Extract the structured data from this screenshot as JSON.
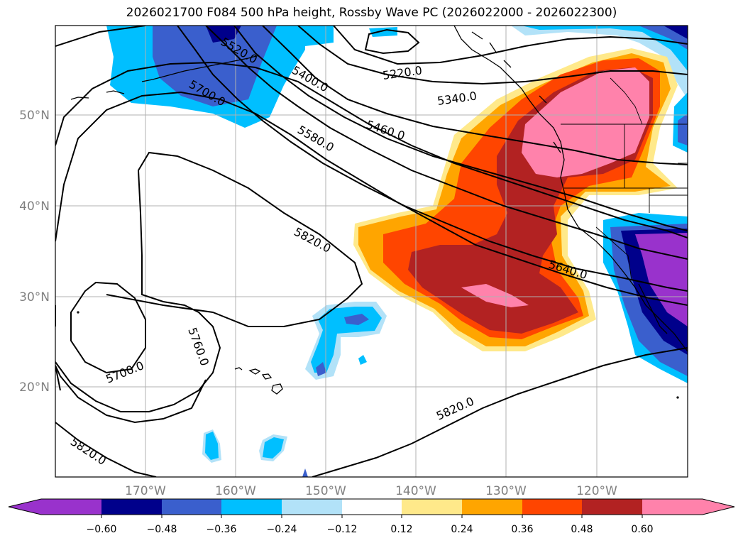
{
  "title": "2026021700 F084 500 hPa height, Rossby Wave PC (2026022000 - 2026022300)",
  "map": {
    "lat_labels": [
      "50°N",
      "40°N",
      "30°N",
      "20°N"
    ],
    "lon_labels": [
      "170°W",
      "160°W",
      "150°W",
      "140°W",
      "130°W",
      "120°W"
    ],
    "contour_labels": [
      "5520.0",
      "5220.0",
      "5400.0",
      "5340.0",
      "5700.0",
      "5460.0",
      "5580.0",
      "5820.0",
      "5640.0",
      "5760.0",
      "5700.0",
      "5820.0",
      "5820.0"
    ],
    "label_text_color": "#808080"
  },
  "colorbar": {
    "ticks": [
      "−0.60",
      "−0.48",
      "−0.36",
      "−0.24",
      "−0.12",
      "0.12",
      "0.24",
      "0.36",
      "0.48",
      "0.60"
    ],
    "colors": {
      "n072": "#9932cc",
      "n060": "#00008b",
      "n048": "#3a5fcd",
      "n036": "#00bfff",
      "n024": "#b2e2f8",
      "zero": "#ffffff",
      "p012": "#ffe98a",
      "p024": "#ffa500",
      "p036": "#ff4500",
      "p048": "#b22222",
      "p060": "#ff82ab"
    }
  }
}
